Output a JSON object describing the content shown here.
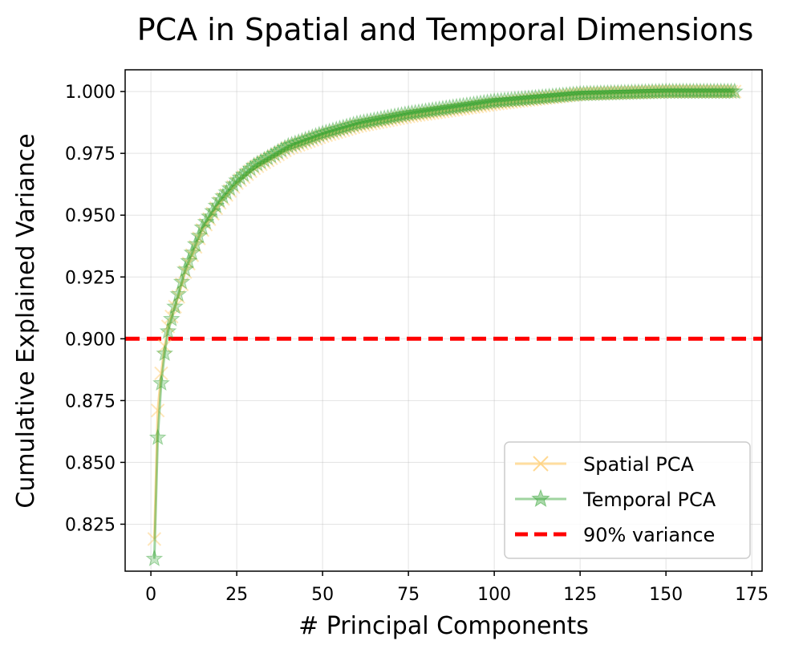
{
  "chart_data": {
    "type": "line",
    "title": "PCA in Spatial and Temporal Dimensions",
    "xlabel": "# Principal Components",
    "ylabel": "Cumulative Explained Variance",
    "xlim": [
      -7.5,
      178
    ],
    "ylim": [
      0.806,
      1.0088
    ],
    "xticks": [
      0,
      25,
      50,
      75,
      100,
      125,
      150,
      175
    ],
    "xtick_labels": [
      "0",
      "25",
      "50",
      "75",
      "100",
      "125",
      "150",
      "175"
    ],
    "yticks": [
      0.825,
      0.85,
      0.875,
      0.9,
      0.925,
      0.95,
      0.975,
      1.0
    ],
    "ytick_labels": [
      "0.825",
      "0.850",
      "0.875",
      "0.900",
      "0.925",
      "0.950",
      "0.975",
      "1.000"
    ],
    "grid": true,
    "legend_position": "bottom-right",
    "series": [
      {
        "name": "Spatial PCA",
        "color": "#ffd27f",
        "marker": "x",
        "x_range": [
          1,
          170
        ],
        "key_points": [
          [
            1,
            0.819
          ],
          [
            2,
            0.871
          ],
          [
            3,
            0.886
          ],
          [
            4,
            0.897
          ],
          [
            5,
            0.905
          ],
          [
            8,
            0.917
          ],
          [
            10,
            0.927
          ],
          [
            15,
            0.944
          ],
          [
            20,
            0.955
          ],
          [
            25,
            0.963
          ],
          [
            30,
            0.969
          ],
          [
            40,
            0.977
          ],
          [
            50,
            0.982
          ],
          [
            60,
            0.986
          ],
          [
            75,
            0.99
          ],
          [
            100,
            0.995
          ],
          [
            125,
            0.999
          ],
          [
            150,
            1.0
          ],
          [
            170,
            1.0
          ]
        ]
      },
      {
        "name": "Temporal PCA",
        "color": "#2ca02c",
        "marker": "*",
        "x_range": [
          1,
          170
        ],
        "key_points": [
          [
            1,
            0.811
          ],
          [
            2,
            0.86
          ],
          [
            3,
            0.882
          ],
          [
            4,
            0.894
          ],
          [
            5,
            0.903
          ],
          [
            8,
            0.918
          ],
          [
            10,
            0.928
          ],
          [
            15,
            0.945
          ],
          [
            20,
            0.956
          ],
          [
            25,
            0.964
          ],
          [
            30,
            0.97
          ],
          [
            40,
            0.978
          ],
          [
            50,
            0.983
          ],
          [
            60,
            0.987
          ],
          [
            75,
            0.991
          ],
          [
            100,
            0.996
          ],
          [
            125,
            0.999
          ],
          [
            150,
            1.0
          ],
          [
            170,
            1.0
          ]
        ]
      }
    ],
    "reference_line": {
      "name": "90% variance",
      "y": 0.9,
      "color": "#ff0000",
      "style": "dashed"
    }
  }
}
